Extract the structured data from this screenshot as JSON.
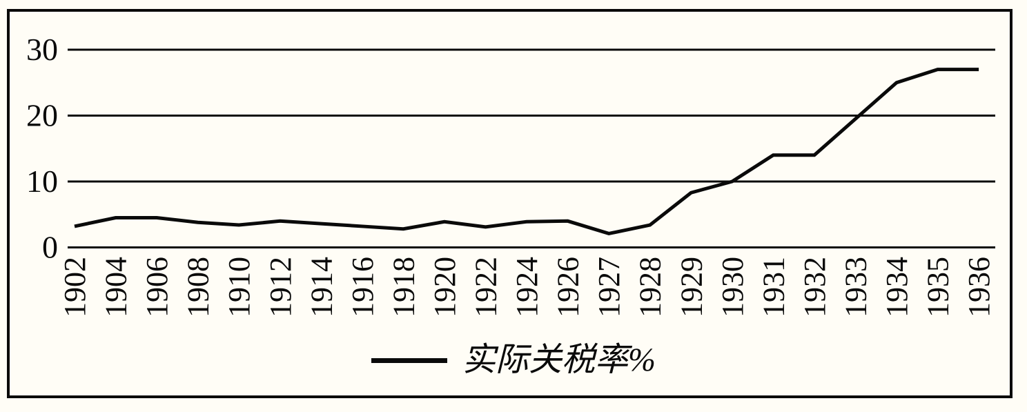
{
  "chart_data": {
    "type": "line",
    "title": "",
    "xlabel": "",
    "ylabel": "",
    "categories": [
      "1902",
      "1904",
      "1906",
      "1908",
      "1910",
      "1912",
      "1914",
      "1916",
      "1918",
      "1920",
      "1922",
      "1924",
      "1926",
      "1927",
      "1928",
      "1929",
      "1930",
      "1931",
      "1932",
      "1933",
      "1934",
      "1935",
      "1936"
    ],
    "series": [
      {
        "name": "实际关税率%",
        "values": [
          3.2,
          4.5,
          4.5,
          3.8,
          3.4,
          4.0,
          3.6,
          3.2,
          2.8,
          3.9,
          3.1,
          3.9,
          4.0,
          2.1,
          3.4,
          8.3,
          10.0,
          14.0,
          14.0,
          19.5,
          25.0,
          27.0,
          27.0
        ]
      }
    ],
    "yticks": [
      0,
      10,
      20,
      30
    ],
    "ylim": [
      0,
      30
    ],
    "grid": "horizontal-only",
    "legend_position": "bottom-center",
    "legend_label": "实际关税率%",
    "line_color": "#0a0a0a",
    "grid_color": "#0a0a0a",
    "background_color": "#fffdf6"
  }
}
